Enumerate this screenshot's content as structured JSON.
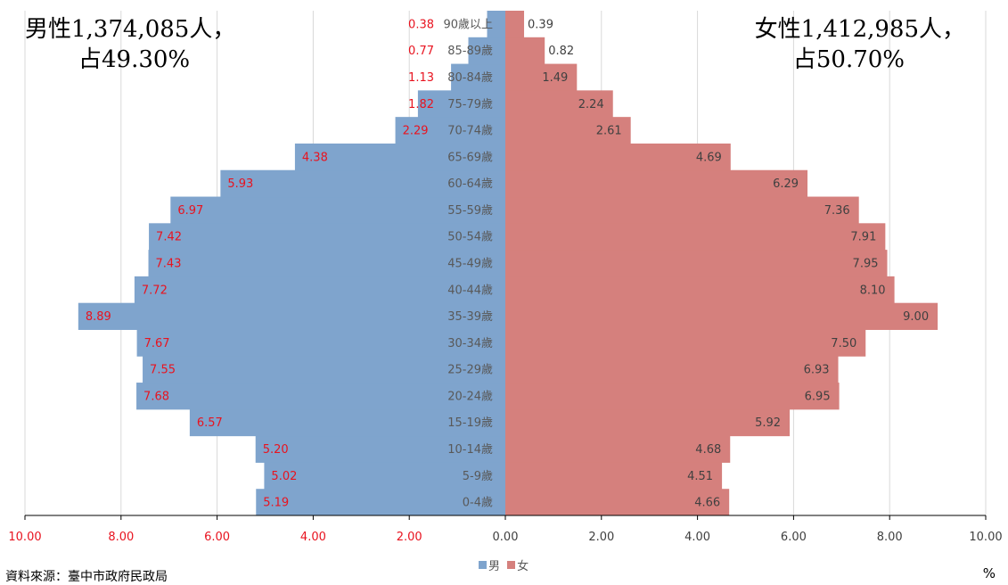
{
  "summary": {
    "male_line1": "男性1,374,085人，",
    "male_line2": "占49.30%",
    "female_line1": "女性1,412,985人，",
    "female_line2": "占50.70%"
  },
  "source": "資料來源：臺中市政府民政局",
  "unit": "%",
  "colors": {
    "male": "#7fa4cd",
    "female": "#d5807d",
    "male_label": "#e8131f",
    "female_label": "#404040",
    "axis_male": "#e8131f",
    "axis_female": "#404040",
    "category": "#595959",
    "grid": "#d9d9d9"
  },
  "chart_data": {
    "type": "bar",
    "orientation": "horizontal",
    "categories": [
      "0-4歲",
      "5-9歲",
      "10-14歲",
      "15-19歲",
      "20-24歲",
      "25-29歲",
      "30-34歲",
      "35-39歲",
      "40-44歲",
      "45-49歲",
      "50-54歲",
      "55-59歲",
      "60-64歲",
      "65-69歲",
      "70-74歲",
      "75-79歲",
      "80-84歲",
      "85-89歲",
      "90歲以上"
    ],
    "series": [
      {
        "name": "男",
        "values": [
          5.19,
          5.02,
          5.2,
          6.57,
          7.68,
          7.55,
          7.67,
          8.89,
          7.72,
          7.43,
          7.42,
          6.97,
          5.93,
          4.38,
          2.29,
          1.82,
          1.13,
          0.77,
          0.38
        ],
        "labels": [
          "5.19",
          "5.02",
          "5.20",
          "6.57",
          "7.68",
          "7.55",
          "7.67",
          "8.89",
          "7.72",
          "7.43",
          "7.42",
          "6.97",
          "5.93",
          "4.38",
          "2.29",
          "1.82",
          "1.13",
          "0.77",
          "0.38"
        ]
      },
      {
        "name": "女",
        "values": [
          4.66,
          4.51,
          4.68,
          5.92,
          6.95,
          6.93,
          7.5,
          9.0,
          8.1,
          7.95,
          7.91,
          7.36,
          6.29,
          4.69,
          2.61,
          2.24,
          1.49,
          0.82,
          0.39
        ],
        "labels": [
          "4.66",
          "4.51",
          "4.68",
          "5.92",
          "6.95",
          "6.93",
          "7.50",
          "9.00",
          "8.10",
          "7.95",
          "7.91",
          "7.36",
          "6.29",
          "4.69",
          "2.61",
          "2.24",
          "1.49",
          "0.82",
          "0.39"
        ]
      }
    ],
    "x_ticks": [
      "10.00",
      "8.00",
      "6.00",
      "4.00",
      "2.00",
      "0.00",
      "2.00",
      "4.00",
      "6.00",
      "8.00",
      "10.00"
    ],
    "xlim": [
      -10,
      10
    ],
    "xlabel": "%",
    "grid": true,
    "legend_position": "bottom"
  }
}
